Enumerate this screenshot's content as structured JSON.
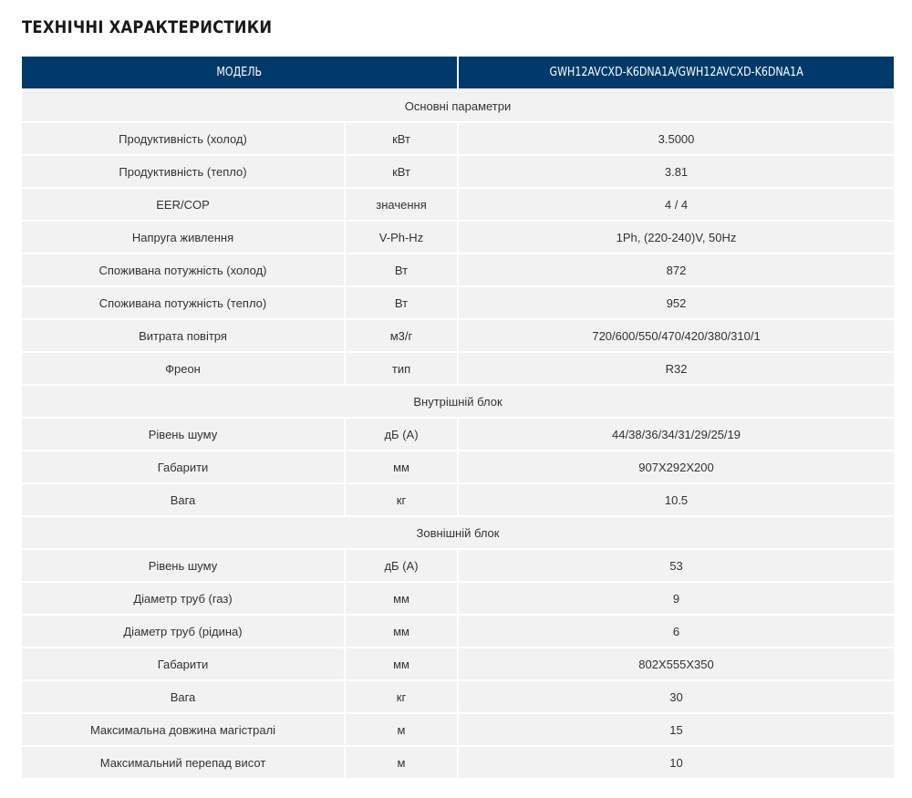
{
  "title": "ТЕХНІЧНІ ХАРАКТЕРИСТИКИ",
  "header": {
    "model_label": "МОДЕЛЬ",
    "model_value": "GWH12AVCXD-K6DNA1A/GWH12AVCXD-K6DNA1A"
  },
  "sections": {
    "main": "Основні параметри",
    "indoor": "Внутрішній блок",
    "outdoor": "Зовнішній блок"
  },
  "rows": [
    {
      "param": "Продуктивність (холод)",
      "unit": "кВт",
      "value": "3.5000"
    },
    {
      "param": "Продуктивність (тепло)",
      "unit": "кВт",
      "value": "3.81"
    },
    {
      "param": "EER/COP",
      "unit": "значення",
      "value": "4 / 4"
    },
    {
      "param": "Напруга живлення",
      "unit": "V-Ph-Hz",
      "value": "1Ph, (220-240)V, 50Hz"
    },
    {
      "param": "Споживана потужність (холод)",
      "unit": "Вт",
      "value": "872"
    },
    {
      "param": "Споживана потужність (тепло)",
      "unit": "Вт",
      "value": "952"
    },
    {
      "param": "Витрата повітря",
      "unit": "м3/г",
      "value": "720/600/550/470/420/380/310/1"
    },
    {
      "param": "Фреон",
      "unit": "тип",
      "value": "R32"
    },
    {
      "param": "Рівень шуму",
      "unit": "дБ (А)",
      "value": "44/38/36/34/31/29/25/19"
    },
    {
      "param": "Габарити",
      "unit": "мм",
      "value": "907X292X200"
    },
    {
      "param": "Вага",
      "unit": "кг",
      "value": "10.5"
    },
    {
      "param": "Рівень шуму",
      "unit": "дБ (А)",
      "value": "53"
    },
    {
      "param": "Діаметр труб (газ)",
      "unit": "мм",
      "value": "9"
    },
    {
      "param": "Діаметр труб (рідина)",
      "unit": "мм",
      "value": "6"
    },
    {
      "param": "Габарити",
      "unit": "мм",
      "value": "802X555X350"
    },
    {
      "param": "Вага",
      "unit": "кг",
      "value": "30"
    },
    {
      "param": "Максимальна довжина магістралі",
      "unit": "м",
      "value": "15"
    },
    {
      "param": "Максимальний перепад висот",
      "unit": "м",
      "value": "10"
    }
  ]
}
